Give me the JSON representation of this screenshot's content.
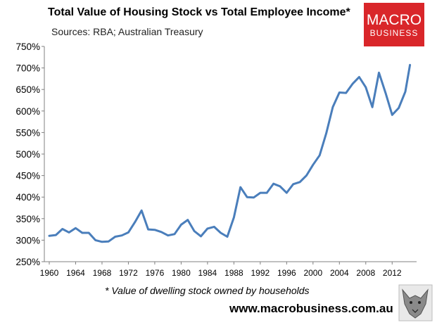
{
  "chart_data": {
    "type": "line",
    "title": "Total Value of Housing Stock vs Total Employee Income*",
    "subtitle": "Sources: RBA; Australian Treasury",
    "footnote": "* Value of dwelling stock owned by households",
    "ylim": [
      250,
      750
    ],
    "yticks": [
      "250%",
      "300%",
      "350%",
      "400%",
      "450%",
      "500%",
      "550%",
      "600%",
      "650%",
      "700%",
      "750%"
    ],
    "xlim": [
      1960,
      2014
    ],
    "xticks": [
      "1960",
      "1964",
      "1968",
      "1972",
      "1976",
      "1980",
      "1984",
      "1988",
      "1992",
      "1996",
      "2000",
      "2004",
      "2008",
      "2012"
    ],
    "grid": false,
    "series": [
      {
        "color": "#4a7ebb",
        "x": [
          1960,
          1961,
          1962,
          1963,
          1964,
          1965,
          1966,
          1967,
          1968,
          1969,
          1970,
          1971,
          1972,
          1973,
          1974,
          1975,
          1976,
          1977,
          1978,
          1979,
          1980,
          1981,
          1982,
          1983,
          1984,
          1985,
          1986,
          1987,
          1988,
          1989,
          1990,
          1991,
          1992,
          1993,
          1994,
          1995,
          1996,
          1997,
          1998,
          1999,
          2000,
          2001,
          2002,
          2003,
          2004,
          2005,
          2006,
          2007,
          2008,
          2009,
          2010,
          2011,
          2012,
          2013,
          2014,
          2014.7
        ],
        "values": [
          310,
          312,
          326,
          318,
          328,
          317,
          317,
          300,
          296,
          297,
          308,
          311,
          318,
          342,
          369,
          325,
          324,
          319,
          311,
          314,
          336,
          347,
          321,
          309,
          327,
          331,
          317,
          308,
          353,
          423,
          400,
          399,
          410,
          410,
          431,
          425,
          410,
          430,
          435,
          450,
          475,
          497,
          548,
          609,
          643,
          642,
          663,
          679,
          655,
          609,
          689,
          642,
          591,
          607,
          645,
          707
        ]
      }
    ]
  },
  "logo": {
    "line1": "MACRO",
    "line2": "BUSINESS",
    "bg": "#d9262a"
  },
  "website": "www.macrobusiness.com.au",
  "wolf_icon": "wolf-icon"
}
